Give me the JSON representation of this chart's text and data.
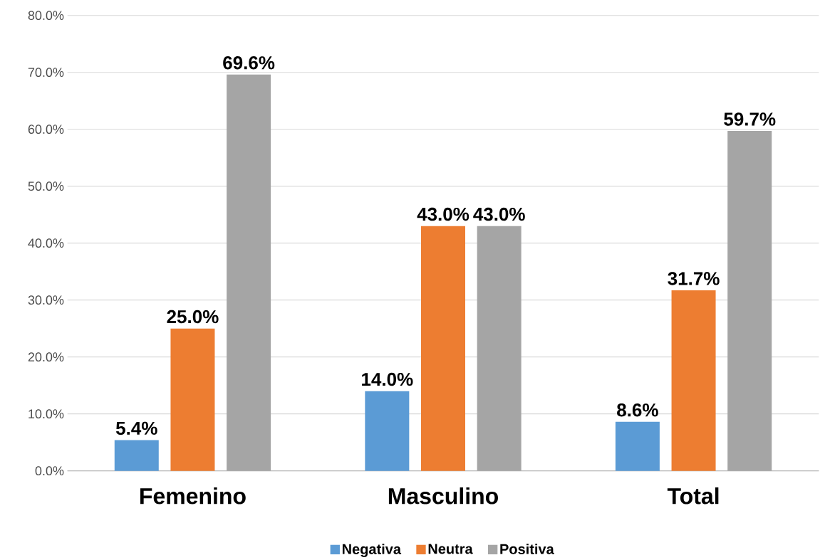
{
  "chart_data": {
    "type": "bar",
    "categories": [
      "Femenino",
      "Masculino",
      "Total"
    ],
    "series": [
      {
        "name": "Negativa",
        "color": "#5b9bd5",
        "values": [
          5.4,
          14.0,
          8.6
        ],
        "value_labels": [
          "5.4%",
          "14.0%",
          "8.6%"
        ]
      },
      {
        "name": "Neutra",
        "color": "#ed7d31",
        "values": [
          25.0,
          43.0,
          31.7
        ],
        "value_labels": [
          "25.0%",
          "43.0%",
          "31.7%"
        ]
      },
      {
        "name": "Positiva",
        "color": "#a5a5a5",
        "values": [
          69.6,
          43.0,
          59.7
        ],
        "value_labels": [
          "69.6%",
          "43.0%",
          "59.7%"
        ]
      }
    ],
    "ylim": [
      0,
      80
    ],
    "yticks": [
      {
        "value": 0,
        "label": "0.0%"
      },
      {
        "value": 10,
        "label": "10.0%"
      },
      {
        "value": 20,
        "label": "20.0%"
      },
      {
        "value": 30,
        "label": "30.0%"
      },
      {
        "value": 40,
        "label": "40.0%"
      },
      {
        "value": 50,
        "label": "50.0%"
      },
      {
        "value": 60,
        "label": "60.0%"
      },
      {
        "value": 70,
        "label": "70.0%"
      },
      {
        "value": 80,
        "label": "80.0%"
      }
    ],
    "grid": "y",
    "legend": "bottom"
  }
}
